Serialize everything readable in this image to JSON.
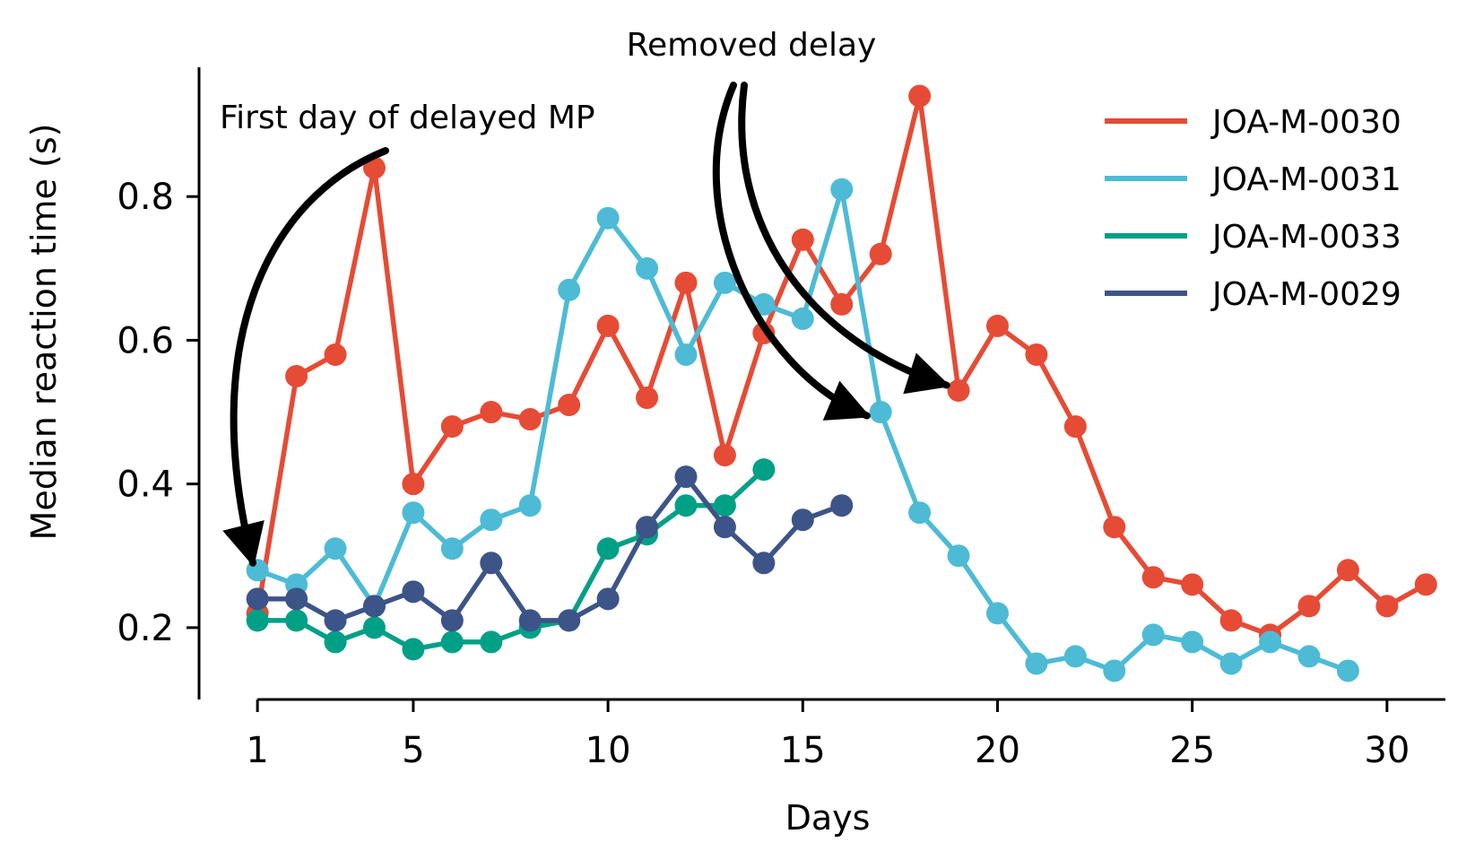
{
  "chart_data": {
    "type": "line",
    "xlabel": "Days",
    "ylabel": "Median reaction time (s)",
    "xlim": [
      -0.5,
      31.5
    ],
    "ylim": [
      0.1,
      0.98
    ],
    "xticks": [
      1,
      5,
      10,
      15,
      20,
      25,
      30
    ],
    "xtick_labels": [
      "1",
      "5",
      "10",
      "15",
      "20",
      "25",
      "30"
    ],
    "yticks": [
      0.2,
      0.4,
      0.6,
      0.8
    ],
    "ytick_labels": [
      "0.2",
      "0.4",
      "0.6",
      "0.8"
    ],
    "grid": false,
    "legend_position": "top-right",
    "series": [
      {
        "name": "JOA-M-0030",
        "color": "#e64b35",
        "x": [
          1,
          2,
          3,
          4,
          5,
          6,
          7,
          8,
          9,
          10,
          11,
          12,
          13,
          14,
          15,
          16,
          17,
          18,
          19,
          20,
          21,
          22,
          23,
          24,
          25,
          26,
          27,
          28,
          29,
          30,
          31
        ],
        "y": [
          0.22,
          0.55,
          0.58,
          0.84,
          0.4,
          0.48,
          0.5,
          0.49,
          0.51,
          0.62,
          0.52,
          0.68,
          0.44,
          0.61,
          0.74,
          0.65,
          0.72,
          0.94,
          0.53,
          0.62,
          0.58,
          0.48,
          0.34,
          0.27,
          0.26,
          0.21,
          0.19,
          0.23,
          0.28,
          0.23,
          0.26
        ]
      },
      {
        "name": "JOA-M-0031",
        "color": "#4dbbd5",
        "x": [
          1,
          2,
          3,
          4,
          5,
          6,
          7,
          8,
          9,
          10,
          11,
          12,
          13,
          14,
          15,
          16,
          17,
          18,
          19,
          20,
          21,
          22,
          23,
          24,
          25,
          26,
          27,
          28,
          29
        ],
        "y": [
          0.28,
          0.26,
          0.31,
          0.23,
          0.36,
          0.31,
          0.35,
          0.37,
          0.67,
          0.77,
          0.7,
          0.58,
          0.68,
          0.65,
          0.63,
          0.81,
          0.5,
          0.36,
          0.3,
          0.22,
          0.15,
          0.16,
          0.14,
          0.19,
          0.18,
          0.15,
          0.18,
          0.16,
          0.14
        ]
      },
      {
        "name": "JOA-M-0033",
        "color": "#00a087",
        "x": [
          1,
          2,
          3,
          4,
          5,
          6,
          7,
          8,
          9,
          10,
          11,
          12,
          13,
          14
        ],
        "y": [
          0.21,
          0.21,
          0.18,
          0.2,
          0.17,
          0.18,
          0.18,
          0.2,
          0.21,
          0.31,
          0.33,
          0.37,
          0.37,
          0.42
        ]
      },
      {
        "name": "JOA-M-0029",
        "color": "#3c5488",
        "x": [
          1,
          2,
          3,
          4,
          5,
          6,
          7,
          8,
          9,
          10,
          11,
          12,
          13,
          14,
          15,
          16
        ],
        "y": [
          0.24,
          0.24,
          0.21,
          0.23,
          0.25,
          0.21,
          0.29,
          0.21,
          0.21,
          0.24,
          0.34,
          0.41,
          0.34,
          0.29,
          0.35,
          0.37
        ]
      }
    ],
    "annotations": [
      {
        "text": "First day of delayed MP",
        "points_to": {
          "x": 1,
          "y": 0.3
        }
      },
      {
        "text": "Removed delay",
        "points_to": [
          {
            "x": 16.6,
            "y": 0.5
          },
          {
            "x": 18.6,
            "y": 0.54
          }
        ]
      }
    ]
  }
}
